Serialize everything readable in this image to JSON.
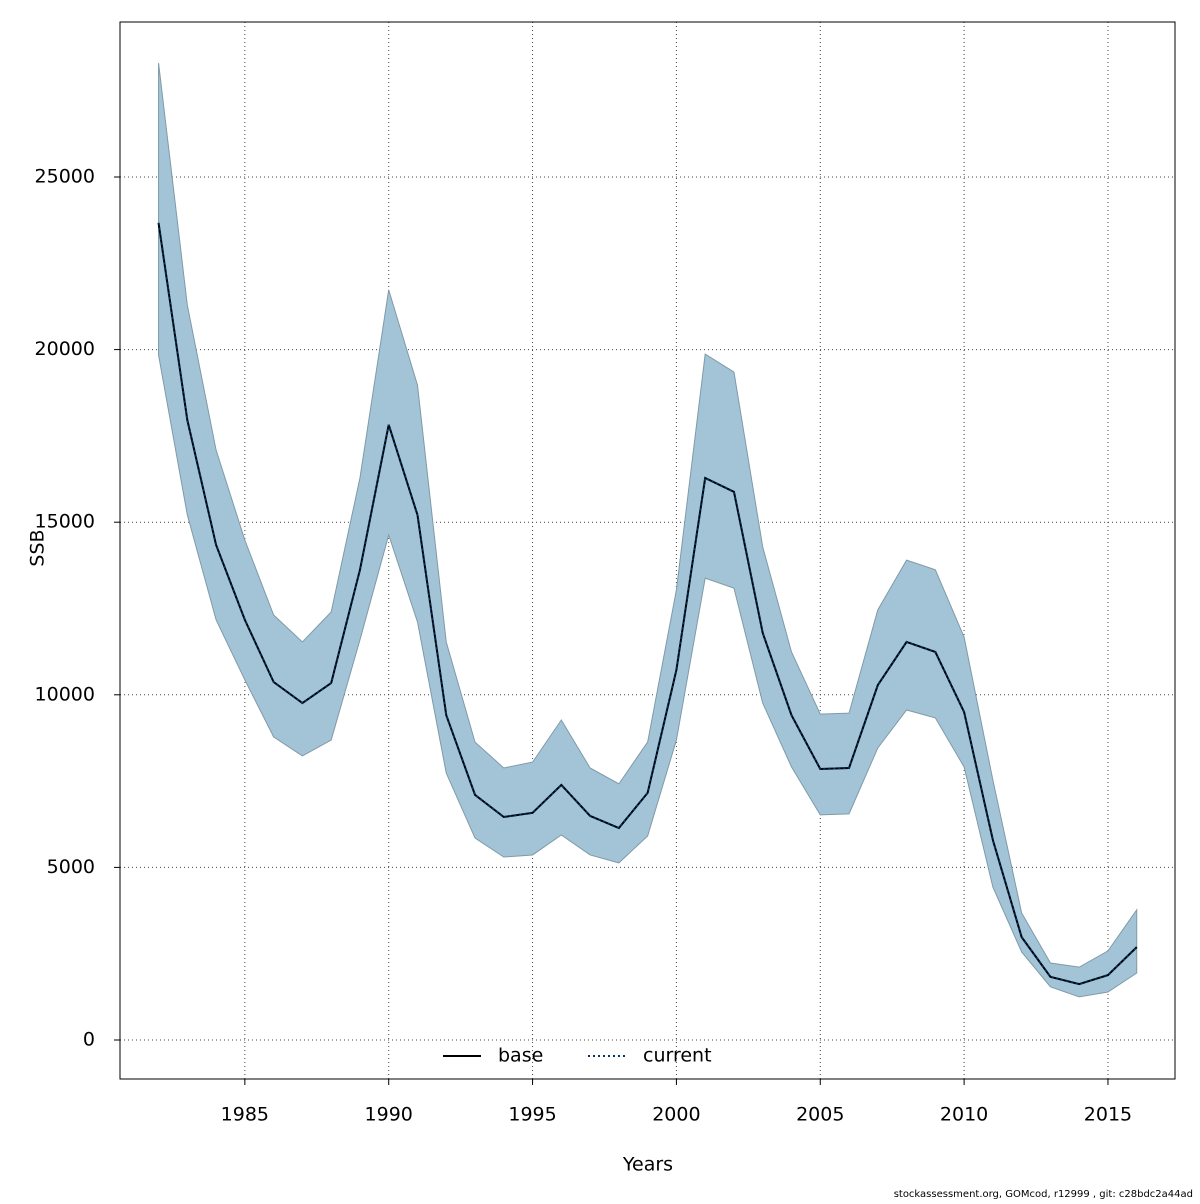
{
  "chart_data": {
    "type": "line",
    "x_label": "Years",
    "y_label": "SSB",
    "footer": "stockassessment.org, GOMcod, r12999 , git: c28bdc2a44ad",
    "x": [
      1982,
      1983,
      1984,
      1985,
      1986,
      1987,
      1988,
      1989,
      1990,
      1991,
      1992,
      1993,
      1994,
      1995,
      1996,
      1997,
      1998,
      1999,
      2000,
      2001,
      2002,
      2003,
      2004,
      2005,
      2006,
      2007,
      2008,
      2009,
      2010,
      2011,
      2012,
      2013,
      2014,
      2015,
      2016
    ],
    "series": [
      {
        "name": "base",
        "color": "#000000",
        "dash": "solid",
        "values": [
          23670,
          17960,
          14340,
          12170,
          10370,
          9760,
          10340,
          13620,
          17820,
          15210,
          9410,
          7100,
          6460,
          6580,
          7390,
          6490,
          6140,
          7160,
          10720,
          16280,
          15880,
          11790,
          9410,
          7850,
          7880,
          10280,
          11530,
          11240,
          9500,
          5790,
          2980,
          1830,
          1620,
          1880,
          2690
        ]
      },
      {
        "name": "current",
        "color": "#00366b",
        "dash": "dotted",
        "values": [
          23670,
          17960,
          14340,
          12170,
          10370,
          9760,
          10340,
          13620,
          17820,
          15210,
          9410,
          7100,
          6460,
          6580,
          7390,
          6490,
          6140,
          7160,
          10720,
          16280,
          15880,
          11790,
          9410,
          7850,
          7880,
          10280,
          11530,
          11240,
          9500,
          5790,
          2980,
          1830,
          1620,
          1880,
          2690
        ]
      }
    ],
    "band": {
      "color": "#a3c4d6",
      "upper": [
        28300,
        21290,
        17090,
        14480,
        12310,
        11530,
        12400,
        16280,
        21730,
        18970,
        11530,
        8630,
        7880,
        8050,
        9270,
        7880,
        7420,
        8630,
        13040,
        19870,
        19350,
        14280,
        11240,
        9440,
        9470,
        12460,
        13900,
        13620,
        11670,
        7530,
        3680,
        2230,
        2110,
        2580,
        3770
      ],
      "lower": [
        19840,
        15210,
        12170,
        10430,
        8780,
        8230,
        8690,
        11590,
        14630,
        12110,
        7730,
        5850,
        5300,
        5360,
        5940,
        5360,
        5130,
        5910,
        8690,
        13380,
        13090,
        9760,
        7910,
        6520,
        6550,
        8460,
        9560,
        9330,
        7910,
        4430,
        2550,
        1540,
        1250,
        1390,
        1940
      ]
    },
    "xlim": [
      1980.66,
      2017.33
    ],
    "ylim": [
      -1130,
      29490
    ],
    "xticks": [
      1985,
      1990,
      1995,
      2000,
      2005,
      2010,
      2015
    ],
    "yticks": [
      0,
      5000,
      10000,
      15000,
      20000,
      25000
    ],
    "grid": true,
    "legend": "bottom"
  }
}
